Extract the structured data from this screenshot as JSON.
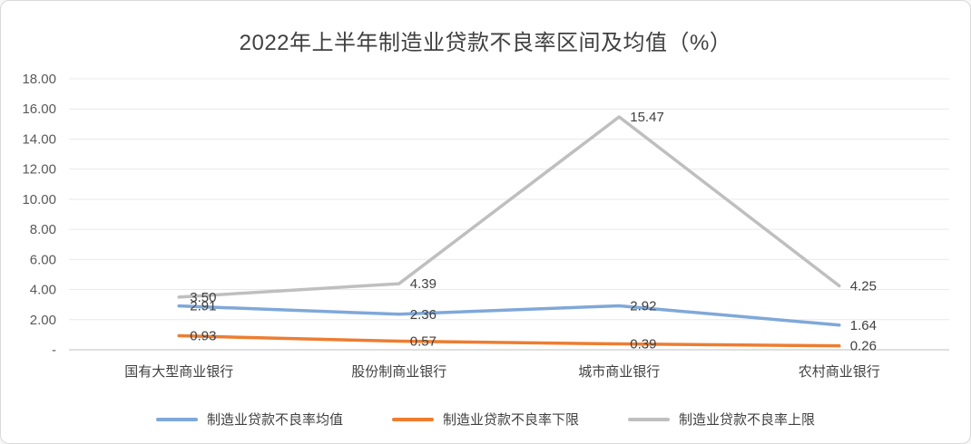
{
  "chart_data": {
    "type": "line",
    "title": "2022年上半年制造业贷款不良率区间及均值（%）",
    "categories": [
      "国有大型商业银行",
      "股份制商业银行",
      "城市商业银行",
      "农村商业银行"
    ],
    "series": [
      {
        "name": "制造业贷款不良率均值",
        "color": "#7FA8D9",
        "values": [
          2.91,
          2.36,
          2.92,
          1.64
        ]
      },
      {
        "name": "制造业贷款不良率下限",
        "color": "#ED7D31",
        "values": [
          0.93,
          0.57,
          0.39,
          0.26
        ]
      },
      {
        "name": "制造业贷款不良率上限",
        "color": "#BFBFBF",
        "values": [
          3.5,
          4.39,
          15.47,
          4.25
        ]
      }
    ],
    "y_axis": {
      "min": 0,
      "max": 18,
      "step": 2,
      "tick_labels": [
        "-",
        "2.00",
        "4.00",
        "6.00",
        "8.00",
        "10.00",
        "12.00",
        "14.00",
        "16.00",
        "18.00"
      ]
    },
    "grid": true,
    "legend_position": "bottom",
    "data_labels": true
  }
}
